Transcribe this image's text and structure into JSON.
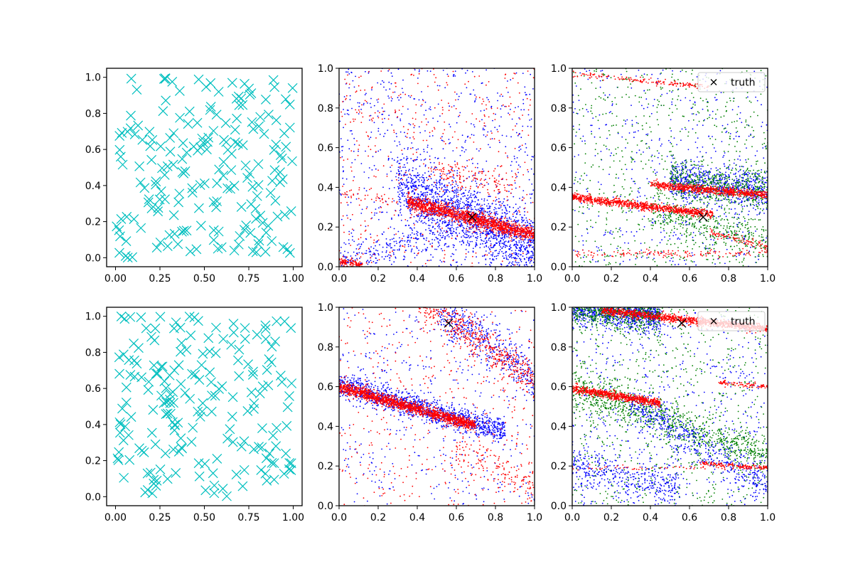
{
  "figure": {
    "layout": "2x3 grid of scatter panels",
    "background": "#ffffff"
  },
  "colors": {
    "cyan": "#00bfbf",
    "blue": "#0000ff",
    "red": "#ff0000",
    "green": "#008000",
    "truth": "#000000"
  },
  "chart_data": [
    {
      "id": "p00",
      "type": "scatter",
      "xlim": [
        -0.05,
        1.05
      ],
      "ylim": [
        -0.05,
        1.05
      ],
      "xticks": [
        0.0,
        0.25,
        0.5,
        0.75,
        1.0
      ],
      "yticks": [
        0.0,
        0.2,
        0.4,
        0.6,
        0.8,
        1.0
      ],
      "xtick_labels": [
        "0.00",
        "0.25",
        "0.50",
        "0.75",
        "1.00"
      ],
      "ytick_labels": [
        "0.0",
        "0.2",
        "0.4",
        "0.6",
        "0.8",
        "1.0"
      ],
      "grid": false,
      "series": [
        {
          "color": "#00bfbf",
          "marker": "x-large",
          "distribution": "uniform",
          "x_range": [
            0,
            1
          ],
          "y_range": [
            0,
            1
          ],
          "n": 200,
          "seed": 11
        }
      ]
    },
    {
      "id": "p01",
      "type": "scatter",
      "xlim": [
        0,
        1
      ],
      "ylim": [
        0,
        1
      ],
      "xticks": [
        0.0,
        0.2,
        0.4,
        0.6,
        0.8,
        1.0
      ],
      "yticks": [
        0.0,
        0.2,
        0.4,
        0.6,
        0.8,
        1.0
      ],
      "xtick_labels": [
        "0.0",
        "0.2",
        "0.4",
        "0.6",
        "0.8",
        "1.0"
      ],
      "ytick_labels": [
        "0.0",
        "0.2",
        "0.4",
        "0.6",
        "0.8",
        "1.0"
      ],
      "grid": false,
      "series": [
        {
          "color": "#0000ff",
          "marker": "dot",
          "distribution": "band",
          "x_range": [
            0.3,
            1.0
          ],
          "y_at_x0": 0.55,
          "slope": -0.45,
          "spread": 0.08,
          "n": 1600,
          "seed": 21
        },
        {
          "color": "#0000ff",
          "marker": "dot",
          "distribution": "uniform",
          "x_range": [
            0,
            1
          ],
          "y_range": [
            0,
            1
          ],
          "n": 700,
          "seed": 22
        },
        {
          "color": "#0000ff",
          "marker": "dot",
          "distribution": "band",
          "x_range": [
            0.0,
            0.6
          ],
          "y_at_x0": 0.02,
          "slope": 0.3,
          "spread": 0.04,
          "n": 250,
          "seed": 23
        },
        {
          "color": "#ff0000",
          "marker": "dot",
          "distribution": "uniform",
          "x_range": [
            0,
            1
          ],
          "y_range": [
            0,
            1
          ],
          "n": 450,
          "seed": 24
        },
        {
          "color": "#ff0000",
          "marker": "dot",
          "distribution": "band",
          "x_range": [
            0.35,
            1.0
          ],
          "y_at_x0": 0.42,
          "slope": -0.26,
          "spread": 0.018,
          "n": 1400,
          "seed": 25
        },
        {
          "color": "#ff0000",
          "marker": "dot",
          "distribution": "band",
          "x_range": [
            0.0,
            0.12
          ],
          "y_at_x0": 0.03,
          "slope": -0.2,
          "spread": 0.012,
          "n": 120,
          "seed": 26
        },
        {
          "color": "#ff0000",
          "marker": "dot",
          "distribution": "band",
          "x_range": [
            0.0,
            0.3
          ],
          "y_at_x0": 0.38,
          "slope": -0.2,
          "spread": 0.015,
          "n": 40,
          "seed": 27
        },
        {
          "color": "#ff0000",
          "marker": "dot",
          "distribution": "band",
          "x_range": [
            0.45,
            0.9
          ],
          "y_at_x0": 0.55,
          "slope": -0.15,
          "spread": 0.03,
          "n": 140,
          "seed": 28
        }
      ],
      "truth_point": {
        "x": 0.68,
        "y": 0.25
      }
    },
    {
      "id": "p02",
      "type": "scatter",
      "xlim": [
        0,
        1
      ],
      "ylim": [
        0,
        1
      ],
      "xticks": [
        0.0,
        0.2,
        0.4,
        0.6,
        0.8,
        1.0
      ],
      "yticks": [
        0.0,
        0.2,
        0.4,
        0.6,
        0.8,
        1.0
      ],
      "xtick_labels": [
        "0.0",
        "0.2",
        "0.4",
        "0.6",
        "0.8",
        "1.0"
      ],
      "ytick_labels": [
        "0.0",
        "0.2",
        "0.4",
        "0.6",
        "0.8",
        "1.0"
      ],
      "grid": false,
      "series": [
        {
          "color": "#0000ff",
          "marker": "dot",
          "distribution": "band",
          "x_range": [
            0.5,
            1.0
          ],
          "y_at_x0": 0.5,
          "slope": -0.12,
          "spread": 0.05,
          "n": 700,
          "seed": 31
        },
        {
          "color": "#0000ff",
          "marker": "dot",
          "distribution": "uniform",
          "x_range": [
            0,
            1
          ],
          "y_range": [
            0,
            1
          ],
          "n": 500,
          "seed": 32
        },
        {
          "color": "#008000",
          "marker": "dot",
          "distribution": "band",
          "x_range": [
            0.5,
            1.0
          ],
          "y_at_x0": 0.5,
          "slope": -0.12,
          "spread": 0.05,
          "n": 500,
          "seed": 33
        },
        {
          "color": "#008000",
          "marker": "dot",
          "distribution": "uniform",
          "x_range": [
            0,
            1
          ],
          "y_range": [
            0,
            1
          ],
          "n": 700,
          "seed": 34
        },
        {
          "color": "#008000",
          "marker": "dot",
          "distribution": "band",
          "x_range": [
            0.4,
            1.0
          ],
          "y_at_x0": 0.4,
          "slope": -0.28,
          "spread": 0.05,
          "n": 350,
          "seed": 35
        },
        {
          "color": "#ff0000",
          "marker": "dot",
          "distribution": "band",
          "x_range": [
            0.0,
            0.72
          ],
          "y_at_x0": 0.35,
          "slope": -0.12,
          "spread": 0.01,
          "n": 900,
          "seed": 36
        },
        {
          "color": "#ff0000",
          "marker": "dot",
          "distribution": "band",
          "x_range": [
            0.4,
            1.0
          ],
          "y_at_x0": 0.45,
          "slope": -0.09,
          "spread": 0.01,
          "n": 700,
          "seed": 37
        },
        {
          "color": "#ff0000",
          "marker": "dot",
          "distribution": "band",
          "x_range": [
            0.0,
            0.7
          ],
          "y_at_x0": 0.97,
          "slope": -0.09,
          "spread": 0.008,
          "n": 160,
          "seed": 38
        },
        {
          "color": "#ff0000",
          "marker": "dot",
          "distribution": "band",
          "x_range": [
            0.0,
            1.0
          ],
          "y_at_x0": 0.065,
          "slope": 0.0,
          "spread": 0.008,
          "n": 140,
          "seed": 39
        },
        {
          "color": "#ff0000",
          "marker": "dot",
          "distribution": "band",
          "x_range": [
            0.7,
            1.0
          ],
          "y_at_x0": 0.35,
          "slope": -0.25,
          "spread": 0.01,
          "n": 90,
          "seed": 40
        }
      ],
      "truth_point": {
        "x": 0.67,
        "y": 0.25
      },
      "legend": {
        "position": "top-right",
        "entries": [
          {
            "marker": "x",
            "color": "#000000",
            "label": "truth"
          }
        ]
      }
    },
    {
      "id": "p10",
      "type": "scatter",
      "xlim": [
        -0.05,
        1.05
      ],
      "ylim": [
        -0.05,
        1.05
      ],
      "xticks": [
        0.0,
        0.25,
        0.5,
        0.75,
        1.0
      ],
      "yticks": [
        0.0,
        0.2,
        0.4,
        0.6,
        0.8,
        1.0
      ],
      "xtick_labels": [
        "0.00",
        "0.25",
        "0.50",
        "0.75",
        "1.00"
      ],
      "ytick_labels": [
        "0.0",
        "0.2",
        "0.4",
        "0.6",
        "0.8",
        "1.0"
      ],
      "grid": false,
      "series": [
        {
          "color": "#00bfbf",
          "marker": "x-large",
          "distribution": "uniform",
          "x_range": [
            0,
            1
          ],
          "y_range": [
            0,
            1
          ],
          "n": 200,
          "seed": 41
        }
      ]
    },
    {
      "id": "p11",
      "type": "scatter",
      "xlim": [
        0,
        1
      ],
      "ylim": [
        0,
        1
      ],
      "xticks": [
        0.0,
        0.2,
        0.4,
        0.6,
        0.8,
        1.0
      ],
      "yticks": [
        0.0,
        0.2,
        0.4,
        0.6,
        0.8,
        1.0
      ],
      "xtick_labels": [
        "0.0",
        "0.2",
        "0.4",
        "0.6",
        "0.8",
        "1.0"
      ],
      "ytick_labels": [
        "0.0",
        "0.2",
        "0.4",
        "0.6",
        "0.8",
        "1.0"
      ],
      "grid": false,
      "series": [
        {
          "color": "#0000ff",
          "marker": "dot",
          "distribution": "band",
          "x_range": [
            0.0,
            0.85
          ],
          "y_at_x0": 0.61,
          "slope": -0.28,
          "spread": 0.03,
          "n": 1300,
          "seed": 51
        },
        {
          "color": "#0000ff",
          "marker": "dot",
          "distribution": "band",
          "x_range": [
            0.5,
            1.0
          ],
          "y_at_x0": 1.35,
          "slope": -0.7,
          "spread": 0.06,
          "n": 450,
          "seed": 52
        },
        {
          "color": "#0000ff",
          "marker": "dot",
          "distribution": "uniform",
          "x_range": [
            0,
            1
          ],
          "y_range": [
            0,
            1
          ],
          "n": 400,
          "seed": 53
        },
        {
          "color": "#ff0000",
          "marker": "dot",
          "distribution": "band",
          "x_range": [
            0.0,
            0.7
          ],
          "y_at_x0": 0.6,
          "slope": -0.28,
          "spread": 0.015,
          "n": 1500,
          "seed": 54
        },
        {
          "color": "#ff0000",
          "marker": "dot",
          "distribution": "band",
          "x_range": [
            0.4,
            1.0
          ],
          "y_at_x0": 1.33,
          "slope": -0.7,
          "spread": 0.05,
          "n": 500,
          "seed": 55
        },
        {
          "color": "#ff0000",
          "marker": "dot",
          "distribution": "uniform",
          "x_range": [
            0,
            1
          ],
          "y_range": [
            0,
            1
          ],
          "n": 400,
          "seed": 56
        },
        {
          "color": "#ff0000",
          "marker": "dot",
          "distribution": "band",
          "x_range": [
            0.6,
            1.0
          ],
          "y_at_x0": 0.55,
          "slope": -0.45,
          "spread": 0.05,
          "n": 150,
          "seed": 57
        }
      ],
      "truth_point": {
        "x": 0.56,
        "y": 0.92
      }
    },
    {
      "id": "p12",
      "type": "scatter",
      "xlim": [
        0,
        1
      ],
      "ylim": [
        0,
        1
      ],
      "xticks": [
        0.0,
        0.2,
        0.4,
        0.6,
        0.8,
        1.0
      ],
      "yticks": [
        0.0,
        0.2,
        0.4,
        0.6,
        0.8,
        1.0
      ],
      "xtick_labels": [
        "0.0",
        "0.2",
        "0.4",
        "0.6",
        "0.8",
        "1.0"
      ],
      "ytick_labels": [
        "0.0",
        "0.2",
        "0.4",
        "0.6",
        "0.8",
        "1.0"
      ],
      "grid": false,
      "series": [
        {
          "color": "#0000ff",
          "marker": "dot",
          "distribution": "band",
          "x_range": [
            0.0,
            0.45
          ],
          "y_at_x0": 1.0,
          "slope": -0.1,
          "spread": 0.04,
          "n": 900,
          "seed": 61
        },
        {
          "color": "#008000",
          "marker": "dot",
          "distribution": "band",
          "x_range": [
            0.0,
            0.45
          ],
          "y_at_x0": 1.0,
          "slope": -0.1,
          "spread": 0.04,
          "n": 700,
          "seed": 62
        },
        {
          "color": "#0000ff",
          "marker": "dot",
          "distribution": "uniform",
          "x_range": [
            0,
            1
          ],
          "y_range": [
            0,
            1
          ],
          "n": 600,
          "seed": 63
        },
        {
          "color": "#008000",
          "marker": "dot",
          "distribution": "uniform",
          "x_range": [
            0,
            1
          ],
          "y_range": [
            0,
            1
          ],
          "n": 700,
          "seed": 64
        },
        {
          "color": "#008000",
          "marker": "dot",
          "distribution": "band",
          "x_range": [
            0.0,
            1.0
          ],
          "y_at_x0": 0.6,
          "slope": -0.35,
          "spread": 0.05,
          "n": 900,
          "seed": 65
        },
        {
          "color": "#0000ff",
          "marker": "dot",
          "distribution": "band",
          "x_range": [
            0.3,
            1.0
          ],
          "y_at_x0": 0.7,
          "slope": -0.6,
          "spread": 0.05,
          "n": 500,
          "seed": 66
        },
        {
          "color": "#0000ff",
          "marker": "dot",
          "distribution": "band",
          "x_range": [
            0.0,
            0.55
          ],
          "y_at_x0": 0.2,
          "slope": -0.2,
          "spread": 0.04,
          "n": 350,
          "seed": 67
        },
        {
          "color": "#ff0000",
          "marker": "dot",
          "distribution": "band",
          "x_range": [
            0.15,
            1.0
          ],
          "y_at_x0": 1.0,
          "slope": -0.11,
          "spread": 0.01,
          "n": 1100,
          "seed": 68
        },
        {
          "color": "#ff0000",
          "marker": "dot",
          "distribution": "band",
          "x_range": [
            0.0,
            0.45
          ],
          "y_at_x0": 0.59,
          "slope": -0.16,
          "spread": 0.01,
          "n": 700,
          "seed": 69
        },
        {
          "color": "#ff0000",
          "marker": "dot",
          "distribution": "band",
          "x_range": [
            0.0,
            1.0
          ],
          "y_at_x0": 0.19,
          "slope": 0.0,
          "spread": 0.006,
          "n": 60,
          "seed": 70
        },
        {
          "color": "#ff0000",
          "marker": "dot",
          "distribution": "band",
          "x_range": [
            0.65,
            1.0
          ],
          "y_at_x0": 0.26,
          "slope": -0.07,
          "spread": 0.006,
          "n": 140,
          "seed": 71
        },
        {
          "color": "#ff0000",
          "marker": "dot",
          "distribution": "band",
          "x_range": [
            0.75,
            1.0
          ],
          "y_at_x0": 0.68,
          "slope": -0.08,
          "spread": 0.006,
          "n": 90,
          "seed": 72
        }
      ],
      "truth_point": {
        "x": 0.56,
        "y": 0.92
      },
      "legend": {
        "position": "top-right",
        "entries": [
          {
            "marker": "x",
            "color": "#000000",
            "label": "truth"
          }
        ]
      }
    }
  ]
}
